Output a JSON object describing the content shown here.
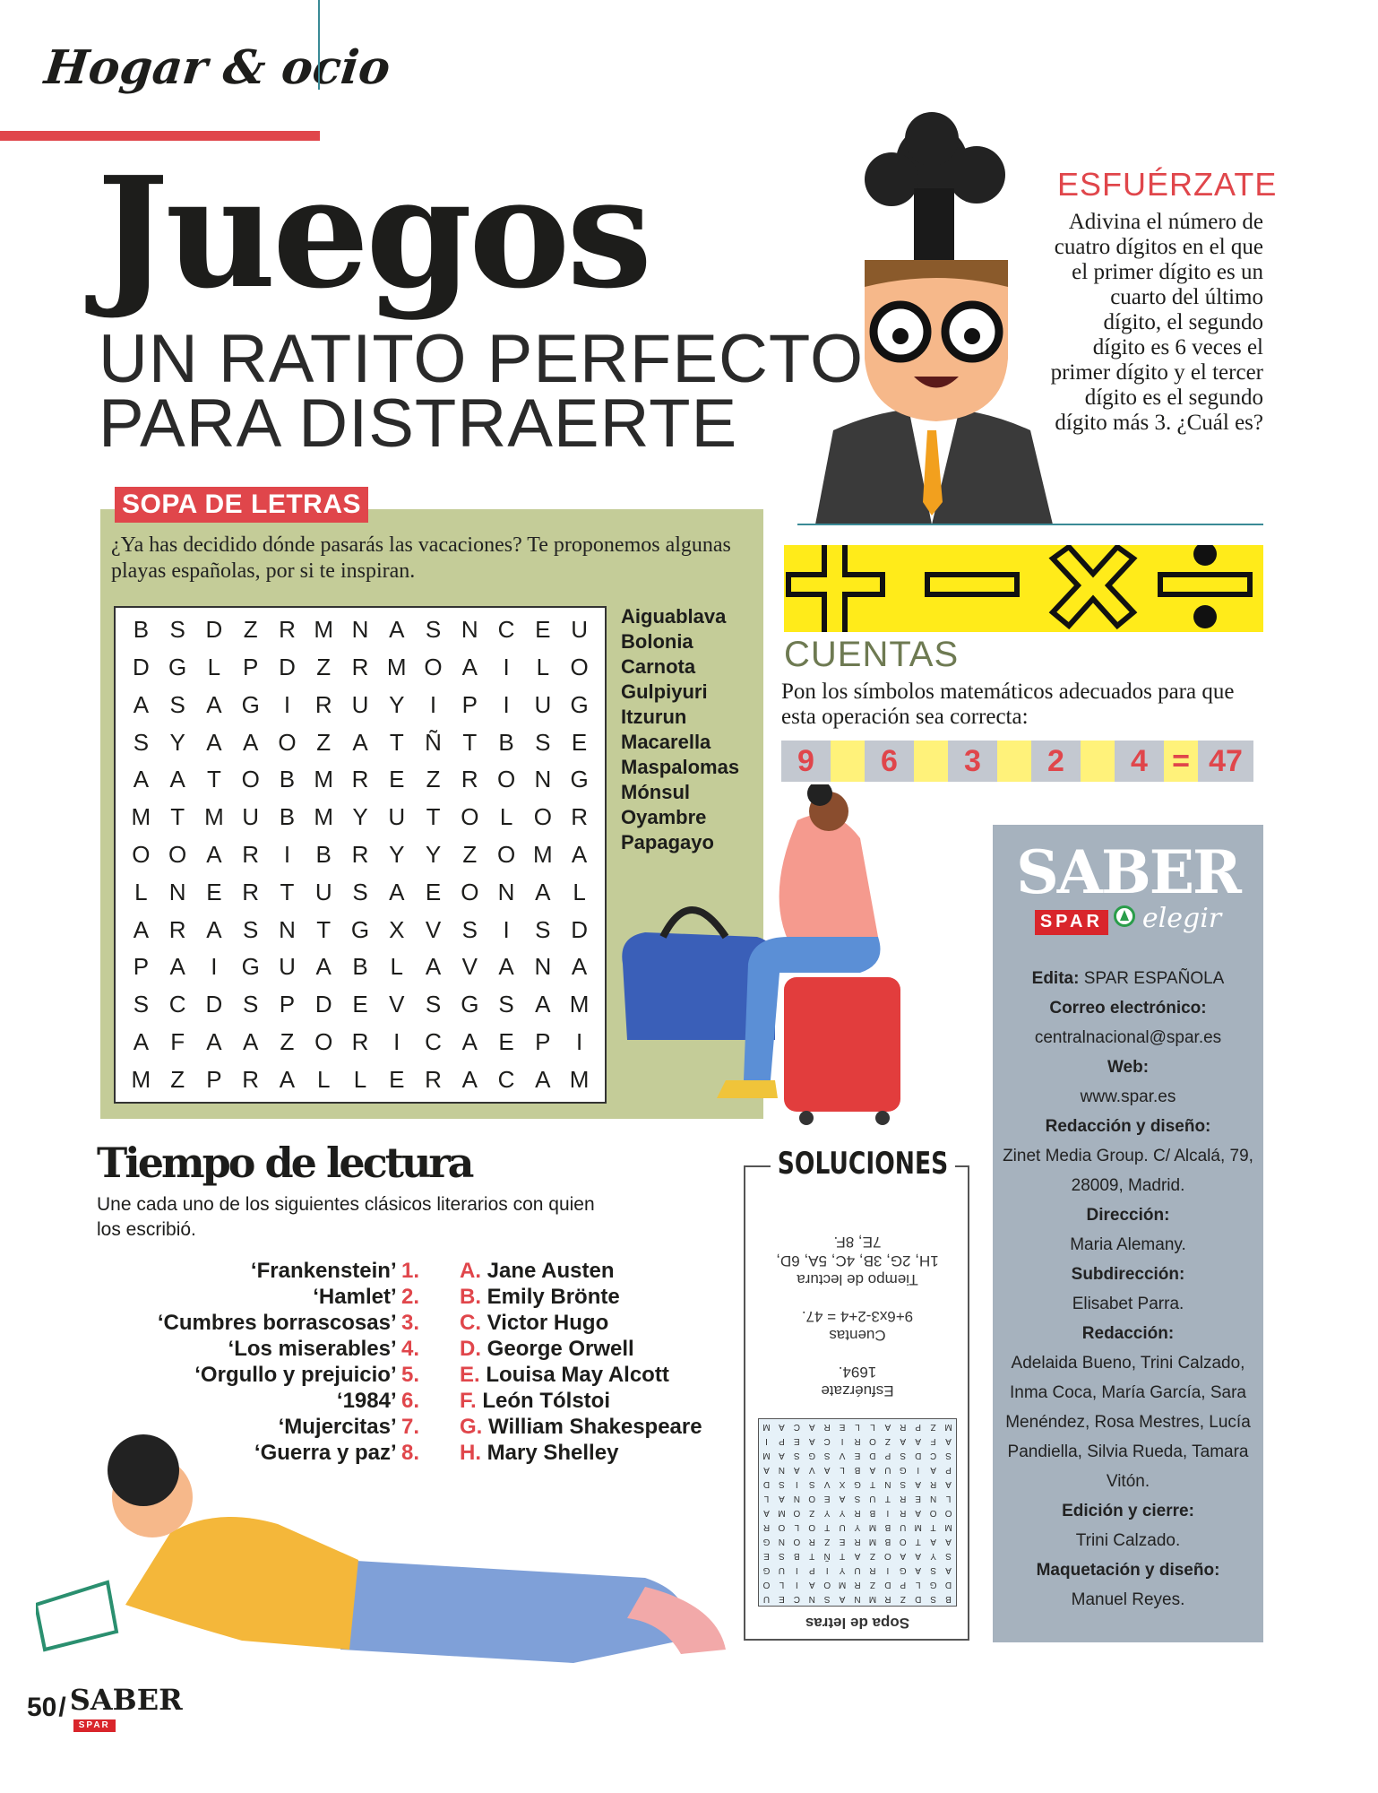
{
  "header": {
    "section": "Hogar & ocio",
    "title": "Juegos",
    "subtitle_line1": "UN RATITO PERFECTO",
    "subtitle_line2": "PARA DISTRAERTE"
  },
  "esfuerzate": {
    "title": "ESFUÉRZATE",
    "text": "Adivina el número de cuatro dígitos en el que el primer dígito es un cuarto del último dígito, el segundo dígito es 6 veces el primer dígito y el tercer dígito es el segundo dígito más 3. ¿Cuál es?"
  },
  "cuentas": {
    "title": "CUENTAS",
    "text": "Pon los símbolos matemáticos adecuados para que esta operación sea correcta:",
    "symbols": [
      "+",
      "−",
      "×",
      "÷"
    ],
    "numbers": [
      "9",
      "6",
      "3",
      "2",
      "4"
    ],
    "equals": "=",
    "result": "47"
  },
  "sopa": {
    "label": "SOPA DE LETRAS",
    "intro": "¿Ya has decidido dónde pasarás las vacaciones? Te proponemos algunas playas españolas, por si te inspiran.",
    "grid": [
      "BSDZRMNASNCEU",
      "DGLPDZRMOAILO",
      "ASAGIRUYIPIUG",
      "SYAAOZATÑTBSE",
      "AATOBMREZRONG",
      "MTMUBMYUTOLOR",
      "OOARIBRYYZOMA",
      "LNERTUSAEONAL",
      "ARASNTGXVSISD",
      "PAIGUABLAVANA",
      "SCDSPDEVSGSAM",
      "AFAAZORICAEPI",
      "MZPRALLERACAM"
    ],
    "words": [
      "Aiguablava",
      "Bolonia",
      "Carnota",
      "Gulpiyuri",
      "Itzurun",
      "Macarella",
      "Maspalomas",
      "Mónsul",
      "Oyambre",
      "Papagayo"
    ]
  },
  "sidebar": {
    "brand": "SABER",
    "spar": "SPAR",
    "elegir": "elegir",
    "credits": [
      {
        "label": "Edita:",
        "value": "SPAR ESPAÑOLA",
        "inline": true
      },
      {
        "label": "Correo electrónico:",
        "value": "centralnacional@spar.es"
      },
      {
        "label": "Web:",
        "value": "www.spar.es"
      },
      {
        "label": "Redacción y diseño:",
        "value": "Zinet Media Group. C/ Alcalá, 79, 28009, Madrid."
      },
      {
        "label": "Dirección:",
        "value": "Maria Alemany."
      },
      {
        "label": "Subdirección:",
        "value": "Elisabet Parra."
      },
      {
        "label": "Redacción:",
        "value": "Adelaida Bueno, Trini Calzado, Inma Coca, María García, Sara Menéndez, Rosa Mestres, Lucía Pandiella, Silvia Rueda, Tamara Vitón."
      },
      {
        "label": "Edición y cierre:",
        "value": "Trini Calzado."
      },
      {
        "label": "Maquetación y diseño:",
        "value": "Manuel Reyes."
      }
    ]
  },
  "lectura": {
    "title": "Tiempo de lectura",
    "text": "Une cada uno de los siguientes clásicos literarios con quien los escribió.",
    "books": [
      {
        "t": "‘Frankenstein’",
        "n": "1."
      },
      {
        "t": "‘Hamlet’",
        "n": "2."
      },
      {
        "t": "‘Cumbres borrascosas’",
        "n": "3."
      },
      {
        "t": "‘Los miserables’",
        "n": "4."
      },
      {
        "t": "‘Orgullo y prejuicio’",
        "n": "5."
      },
      {
        "t": "‘1984’",
        "n": "6."
      },
      {
        "t": "‘Mujercitas’",
        "n": "7."
      },
      {
        "t": "‘Guerra y paz’",
        "n": "8."
      }
    ],
    "authors": [
      {
        "l": "A.",
        "n": "Jane Austen"
      },
      {
        "l": "B.",
        "n": "Emily Brönte"
      },
      {
        "l": "C.",
        "n": "Victor Hugo"
      },
      {
        "l": "D.",
        "n": "George Orwell"
      },
      {
        "l": "E.",
        "n": "Louisa May Alcott"
      },
      {
        "l": "F.",
        "n": "León Tólstoi"
      },
      {
        "l": "G.",
        "n": "William Shakespeare"
      },
      {
        "l": "H.",
        "n": "Mary Shelley"
      }
    ]
  },
  "soluciones": {
    "title": "SOLUCIONES",
    "lectura_label": "Tiempo de lectura",
    "lectura": "1H, 2G, 3B, 4C, 5A, 6D, 7E, 8F.",
    "cuentas_label": "Cuentas",
    "cuentas": "9+6x3-2+4 = 47.",
    "esf_label": "Esfuérzate",
    "esf": "1694.",
    "sopa_label": "Sopa de letras"
  },
  "footer": {
    "page": "50",
    "sep": "/",
    "brand": "SABER"
  },
  "colors": {
    "accent_red": "#e0464b",
    "panel_green": "#c4cc98",
    "yellow": "#ffeb1a",
    "sidebar_grey": "#a6b2be",
    "cuentas_green": "#6e7a52"
  }
}
